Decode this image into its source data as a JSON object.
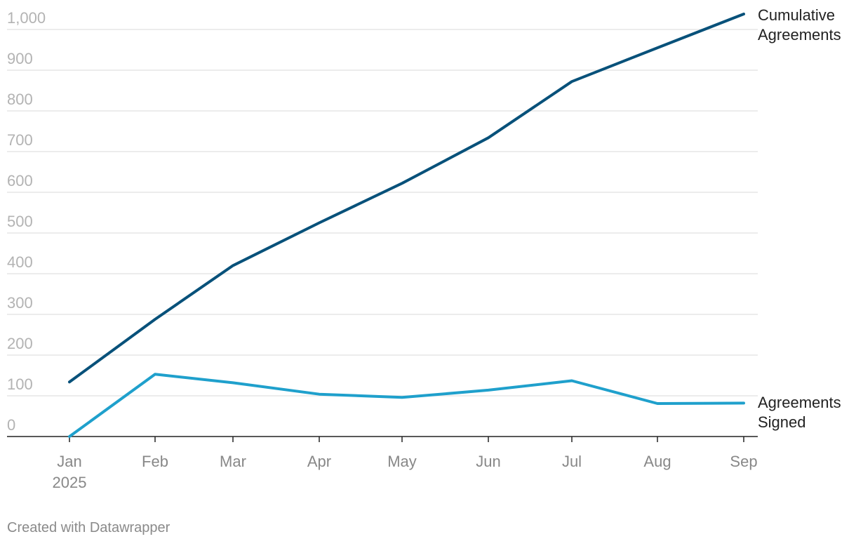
{
  "chart_data": {
    "type": "line",
    "categories": [
      "Jan",
      "Feb",
      "Mar",
      "Apr",
      "May",
      "Jun",
      "Jul",
      "Aug",
      "Sep"
    ],
    "first_category_sub": "2025",
    "yticks": [
      0,
      100,
      200,
      300,
      400,
      500,
      600,
      700,
      800,
      900,
      1000
    ],
    "ytick_labels": [
      "0",
      "100",
      "200",
      "300",
      "400",
      "500",
      "600",
      "700",
      "800",
      "900",
      "1,000"
    ],
    "ylim": [
      0,
      1000
    ],
    "grid": true,
    "series": [
      {
        "name": "Cumulative Agreements",
        "label_lines": [
          "Cumulative",
          "Agreements"
        ],
        "color": "#08517a",
        "values": [
          134,
          288,
          420,
          525,
          622,
          734,
          872,
          955,
          1038
        ]
      },
      {
        "name": "Agreements Signed",
        "label_lines": [
          "Agreements",
          "Signed"
        ],
        "color": "#1fa0cc",
        "values": [
          0,
          153,
          132,
          104,
          96,
          114,
          137,
          81,
          82
        ]
      }
    ]
  },
  "footer": {
    "credit": "Created with Datawrapper"
  }
}
